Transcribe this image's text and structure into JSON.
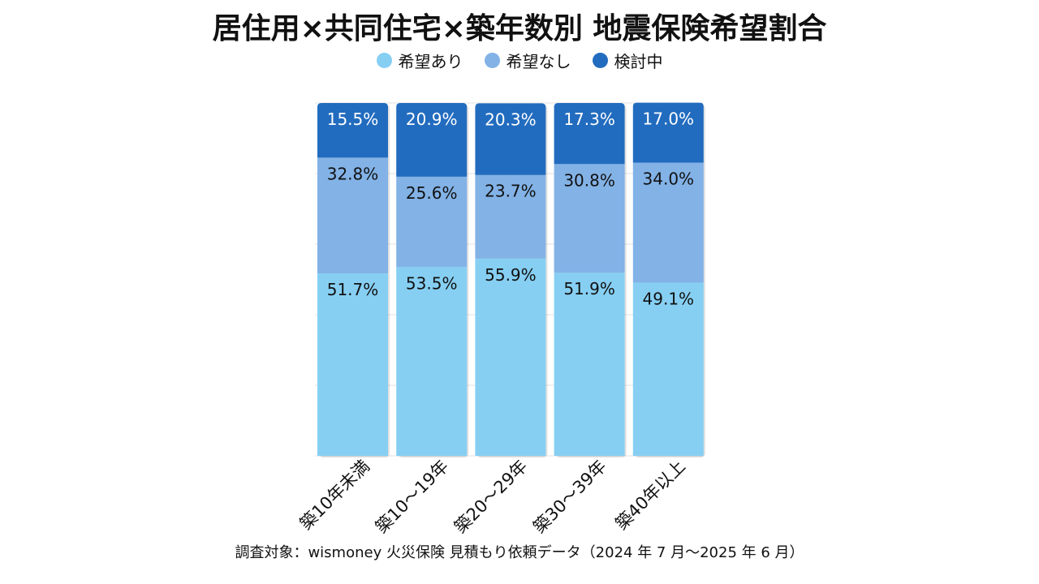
{
  "chart_data": {
    "type": "bar",
    "stacked": true,
    "title": "居住用×共同住宅×築年数別 地震保険希望割合",
    "categories": [
      "築10年未満",
      "築10～19年",
      "築20～29年",
      "築30～39年",
      "築40年以上"
    ],
    "series": [
      {
        "name": "希望あり",
        "color": "#86cff3",
        "values": [
          51.7,
          53.5,
          55.9,
          51.9,
          49.1
        ],
        "labels": [
          "51.7%",
          "53.5%",
          "55.9%",
          "51.9%",
          "49.1%"
        ]
      },
      {
        "name": "希望なし",
        "color": "#82b2e6",
        "values": [
          32.8,
          25.6,
          23.7,
          30.8,
          34.0
        ],
        "labels": [
          "32.8%",
          "25.6%",
          "23.7%",
          "30.8%",
          "34.0%"
        ]
      },
      {
        "name": "検討中",
        "color": "#226cbf",
        "values": [
          15.5,
          20.9,
          20.3,
          17.3,
          17.0
        ],
        "labels": [
          "15.5%",
          "20.9%",
          "20.3%",
          "17.3%",
          "17.0%"
        ]
      }
    ],
    "ylim": [
      0,
      100
    ],
    "legend_position": "top",
    "grid": true
  },
  "source_note": "調査対象：wismoney 火災保険 見積もり依頼データ（2024 年 7 月～2025 年 6 月）"
}
